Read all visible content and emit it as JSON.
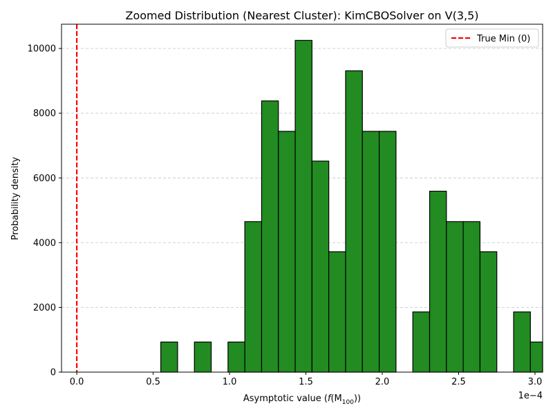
{
  "chart_data": {
    "type": "bar",
    "title": "Zoomed Distribution (Nearest Cluster): KimCBOSolver on V(3,5)",
    "xlabel": "Asymptotic value (f(M100))",
    "xlabel_main": "Asymptotic value (",
    "xlabel_f": "f",
    "xlabel_M": "(M",
    "xlabel_sub": "100",
    "xlabel_end": "))",
    "ylabel": "Probability density",
    "x_offset_label": "1e−4",
    "xlim": [
      -0.1,
      3.05
    ],
    "ylim": [
      0,
      10750
    ],
    "x_units": "1e-4",
    "xticks": [
      0.0,
      0.5,
      1.0,
      1.5,
      2.0,
      2.5,
      3.0
    ],
    "xtick_labels": [
      "0.0",
      "0.5",
      "1.0",
      "1.5",
      "2.0",
      "2.5",
      "3.0"
    ],
    "yticks": [
      0,
      2000,
      4000,
      6000,
      8000,
      10000
    ],
    "ytick_labels": [
      "0",
      "2000",
      "4000",
      "6000",
      "8000",
      "10000"
    ],
    "grid": "y-dashed",
    "bins": [
      {
        "x0": 0.55,
        "x1": 0.66,
        "value": 930
      },
      {
        "x0": 0.77,
        "x1": 0.88,
        "value": 930
      },
      {
        "x0": 0.99,
        "x1": 1.1,
        "value": 930
      },
      {
        "x0": 1.1,
        "x1": 1.21,
        "value": 4650
      },
      {
        "x0": 1.21,
        "x1": 1.32,
        "value": 8380
      },
      {
        "x0": 1.32,
        "x1": 1.43,
        "value": 7440
      },
      {
        "x0": 1.43,
        "x1": 1.54,
        "value": 10250
      },
      {
        "x0": 1.54,
        "x1": 1.65,
        "value": 6520
      },
      {
        "x0": 1.65,
        "x1": 1.76,
        "value": 3720
      },
      {
        "x0": 1.76,
        "x1": 1.87,
        "value": 9310
      },
      {
        "x0": 1.87,
        "x1": 1.98,
        "value": 7440
      },
      {
        "x0": 1.98,
        "x1": 2.09,
        "value": 7440
      },
      {
        "x0": 2.2,
        "x1": 2.31,
        "value": 1860
      },
      {
        "x0": 2.31,
        "x1": 2.42,
        "value": 5590
      },
      {
        "x0": 2.42,
        "x1": 2.53,
        "value": 4650
      },
      {
        "x0": 2.53,
        "x1": 2.64,
        "value": 4650
      },
      {
        "x0": 2.64,
        "x1": 2.75,
        "value": 3720
      },
      {
        "x0": 2.86,
        "x1": 2.97,
        "value": 1860
      },
      {
        "x0": 2.97,
        "x1": 3.08,
        "value": 930
      }
    ],
    "bar_color": "#228b22",
    "bar_edge_color": "#000000",
    "reference_line": {
      "x": 0.0,
      "label": "True Min (0)",
      "color": "#ff0000",
      "style": "dashed"
    },
    "legend": {
      "placement": "top-right",
      "entries": [
        "True Min (0)"
      ]
    }
  }
}
